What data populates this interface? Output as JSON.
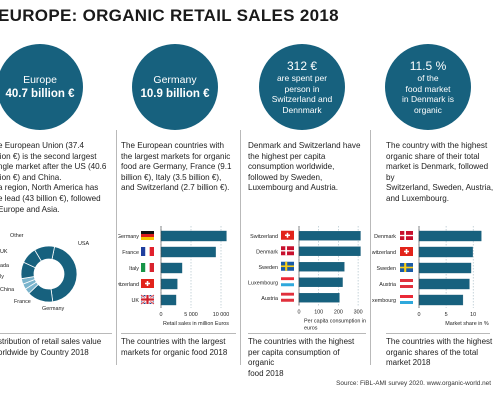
{
  "title": "EUROPE: ORGANIC RETAIL SALES 2018",
  "circles": [
    {
      "label": "Europe",
      "value": "40.7 billion €"
    },
    {
      "label": "Germany",
      "value": "10.9 billion €"
    },
    {
      "lines": [
        "312 €",
        "are spent per",
        "person in",
        "Switzerland and",
        "Dennmark"
      ]
    },
    {
      "lines": [
        "11.5 %",
        "of  the",
        "food market",
        "in Denmark is",
        "organic"
      ]
    }
  ],
  "descriptions": [
    [
      "e European Union (37.4",
      "lion €) is the second largest",
      "ngle market after the US (40.6",
      "lion €)  and China.",
      "a region, North America has",
      "e lead (43 billion €), followed",
      "Europe and Asia."
    ],
    [
      "The European countries with",
      "the largest markets for organic",
      "food are Germany, France (9.1",
      "billion €), Italy (3.5 billion €),",
      "and Switzerland (2.7 billion €)."
    ],
    [
      "Denmark and Switzerland have",
      "the highest per capita",
      "consumption worldwide,",
      "followed by Sweden,",
      "Luxembourg and Austria."
    ],
    [
      "The country with the highest",
      "organic share of their total",
      "market is Denmark, followed by",
      "Switzerland, Sweden, Austria,",
      "and Luxembourg."
    ]
  ],
  "captions": [
    [
      "stribution of retail sales value",
      "orldwide by Country 2018"
    ],
    [
      "The countries with the largest",
      "markets for organic food 2018"
    ],
    [
      "The countries with the highest",
      "per capita consumption of organic",
      "food 2018"
    ],
    [
      "The countries with the highest",
      "organic shares of the total",
      "market 2018"
    ]
  ],
  "source": "Source: FiBL-AMI survey 2020. www.organic-world.net",
  "colors": {
    "primary": "#17617e",
    "light": "#7ab4cc",
    "pale": "#c5dde8",
    "border": "#1f5f7a"
  },
  "chart_data": [
    {
      "type": "pie",
      "variant": "donut",
      "labels": [
        "USA",
        "Other",
        "UK",
        "ada",
        "ly",
        "China",
        "France",
        "Germany"
      ],
      "values": [
        42,
        14,
        3,
        3,
        3,
        9,
        9,
        11
      ],
      "xlabel": "",
      "ylabel": ""
    },
    {
      "type": "bar",
      "orientation": "horizontal",
      "categories": [
        "Germany",
        "France",
        "Italy",
        "Switzerland",
        "UK"
      ],
      "values": [
        10900,
        9100,
        3500,
        2700,
        2500
      ],
      "flags": [
        "germany-flag-icon",
        "france-flag-icon",
        "italy-flag-icon",
        "switzerland-flag-icon",
        "uk-flag-icon"
      ],
      "xticks": [
        "0",
        "5 000",
        "10 000"
      ],
      "xlim": [
        0,
        12000
      ],
      "xlabel": "Retail sales in million Euros",
      "ylabel": ""
    },
    {
      "type": "bar",
      "orientation": "horizontal",
      "categories": [
        "Switzerland",
        "Denmark",
        "Sweden",
        "Luxembourg",
        "Austria"
      ],
      "values": [
        312,
        312,
        230,
        221,
        205
      ],
      "flags": [
        "switzerland-flag-icon",
        "denmark-flag-icon",
        "sweden-flag-icon",
        "luxembourg-flag-icon",
        "austria-flag-icon"
      ],
      "xticks": [
        "0",
        "100",
        "200",
        "300"
      ],
      "xlim": [
        0,
        330
      ],
      "xlabel": "Per capita consumption in euros",
      "ylabel": ""
    },
    {
      "type": "bar",
      "orientation": "horizontal",
      "categories": [
        "Denmark",
        "Switzerland",
        "Sweden",
        "Austria",
        "Luxembourg"
      ],
      "values": [
        11.5,
        9.9,
        9.6,
        9.3,
        8.1
      ],
      "flags": [
        "denmark-flag-icon",
        "switzerland-flag-icon",
        "sweden-flag-icon",
        "austria-flag-icon",
        "luxembourg-flag-icon"
      ],
      "xticks": [
        "0",
        "5",
        "10"
      ],
      "xlim": [
        0,
        12
      ],
      "xlabel": "Market share in %",
      "ylabel": ""
    }
  ]
}
